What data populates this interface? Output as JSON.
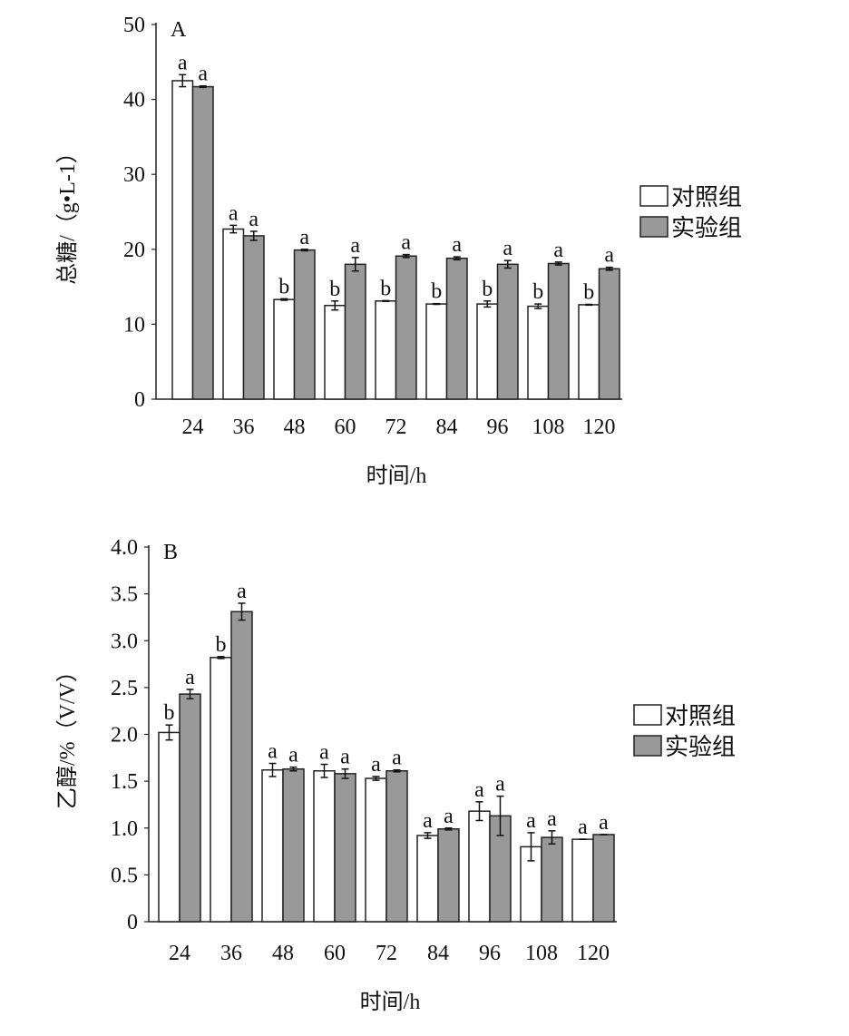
{
  "chart_data": [
    {
      "type": "bar",
      "panel_label": "A",
      "title": "",
      "xlabel": "时间/h",
      "ylabel": "总糖/（g•L-1）",
      "ylim": [
        0,
        50
      ],
      "yticks": [
        "0",
        "10",
        "20",
        "30",
        "40",
        "50"
      ],
      "ytick_values": [
        0,
        10,
        20,
        30,
        40,
        50
      ],
      "categories": [
        "24",
        "36",
        "48",
        "60",
        "72",
        "84",
        "96",
        "108",
        "120"
      ],
      "legend": {
        "position": "right",
        "entries": [
          "对照组",
          "实验组"
        ]
      },
      "series": [
        {
          "name": "对照组",
          "color": "#ffffff",
          "values": [
            42.5,
            22.7,
            13.3,
            12.5,
            13.1,
            12.7,
            12.7,
            12.4,
            12.6
          ],
          "errors": [
            0.8,
            0.5,
            0.1,
            0.6,
            0.05,
            0.05,
            0.4,
            0.3,
            0.05
          ],
          "letters": [
            "a",
            "a",
            "b",
            "b",
            "b",
            "b",
            "b",
            "b",
            "b"
          ]
        },
        {
          "name": "实验组",
          "color": "#999999",
          "values": [
            41.7,
            21.8,
            19.9,
            18.0,
            19.1,
            18.8,
            18.0,
            18.1,
            17.4
          ],
          "errors": [
            0.1,
            0.6,
            0.1,
            0.9,
            0.2,
            0.2,
            0.5,
            0.2,
            0.2
          ],
          "letters": [
            "a",
            "a",
            "a",
            "a",
            "a",
            "a",
            "a",
            "a",
            "a"
          ]
        }
      ]
    },
    {
      "type": "bar",
      "panel_label": "B",
      "title": "",
      "xlabel": "时间/h",
      "ylabel": "乙醇/%（V/V）",
      "ylim": [
        0,
        4.0
      ],
      "yticks": [
        "0",
        "0.5",
        "1.0",
        "1.5",
        "2.0",
        "2.5",
        "3.0",
        "3.5",
        "4.0"
      ],
      "ytick_values": [
        0,
        0.5,
        1,
        1.5,
        2,
        2.5,
        3,
        3.5,
        4
      ],
      "categories": [
        "24",
        "36",
        "48",
        "60",
        "72",
        "84",
        "96",
        "108",
        "120"
      ],
      "legend": {
        "position": "right",
        "entries": [
          "对照组",
          "实验组"
        ]
      },
      "series": [
        {
          "name": "对照组",
          "color": "#ffffff",
          "values": [
            2.02,
            2.82,
            1.62,
            1.61,
            1.53,
            0.92,
            1.18,
            0.8,
            0.88
          ],
          "errors": [
            0.08,
            0.01,
            0.07,
            0.07,
            0.02,
            0.03,
            0.1,
            0.15,
            0
          ],
          "letters": [
            "b",
            "b",
            "a",
            "a",
            "a",
            "a",
            "a",
            "a",
            "a"
          ]
        },
        {
          "name": "实验组",
          "color": "#999999",
          "values": [
            2.43,
            3.31,
            1.63,
            1.58,
            1.61,
            0.99,
            1.13,
            0.9,
            0.93
          ],
          "errors": [
            0.05,
            0.09,
            0.02,
            0.05,
            0.01,
            0.01,
            0.21,
            0.07,
            0
          ],
          "letters": [
            "a",
            "a",
            "a",
            "a",
            "a",
            "a",
            "a",
            "a",
            "a"
          ]
        }
      ]
    }
  ]
}
